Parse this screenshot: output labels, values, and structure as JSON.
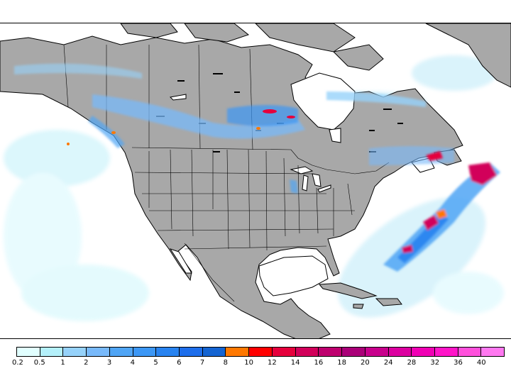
{
  "map": {
    "land_color": "#a8a8a8",
    "water_color": "#ffffff",
    "border_color": "#000000"
  },
  "legend": {
    "labels": [
      "0.2",
      "0.5",
      "1",
      "2",
      "3",
      "4",
      "5",
      "6",
      "7",
      "8",
      "10",
      "12",
      "14",
      "16",
      "18",
      "20",
      "24",
      "28",
      "32",
      "36",
      "40"
    ],
    "colors": [
      "#e1ffff",
      "#b4f0fa",
      "#96d2fa",
      "#78b9fa",
      "#50a5f5",
      "#3c97f5",
      "#2883f0",
      "#1e6eeb",
      "#1464d2",
      "#ff7800",
      "#ff0000",
      "#e6003c",
      "#d2005a",
      "#be006e",
      "#aa0078",
      "#c8008c",
      "#dc00a0",
      "#f000b4",
      "#ff14c8",
      "#ff50dc",
      "#ff78f0"
    ]
  }
}
